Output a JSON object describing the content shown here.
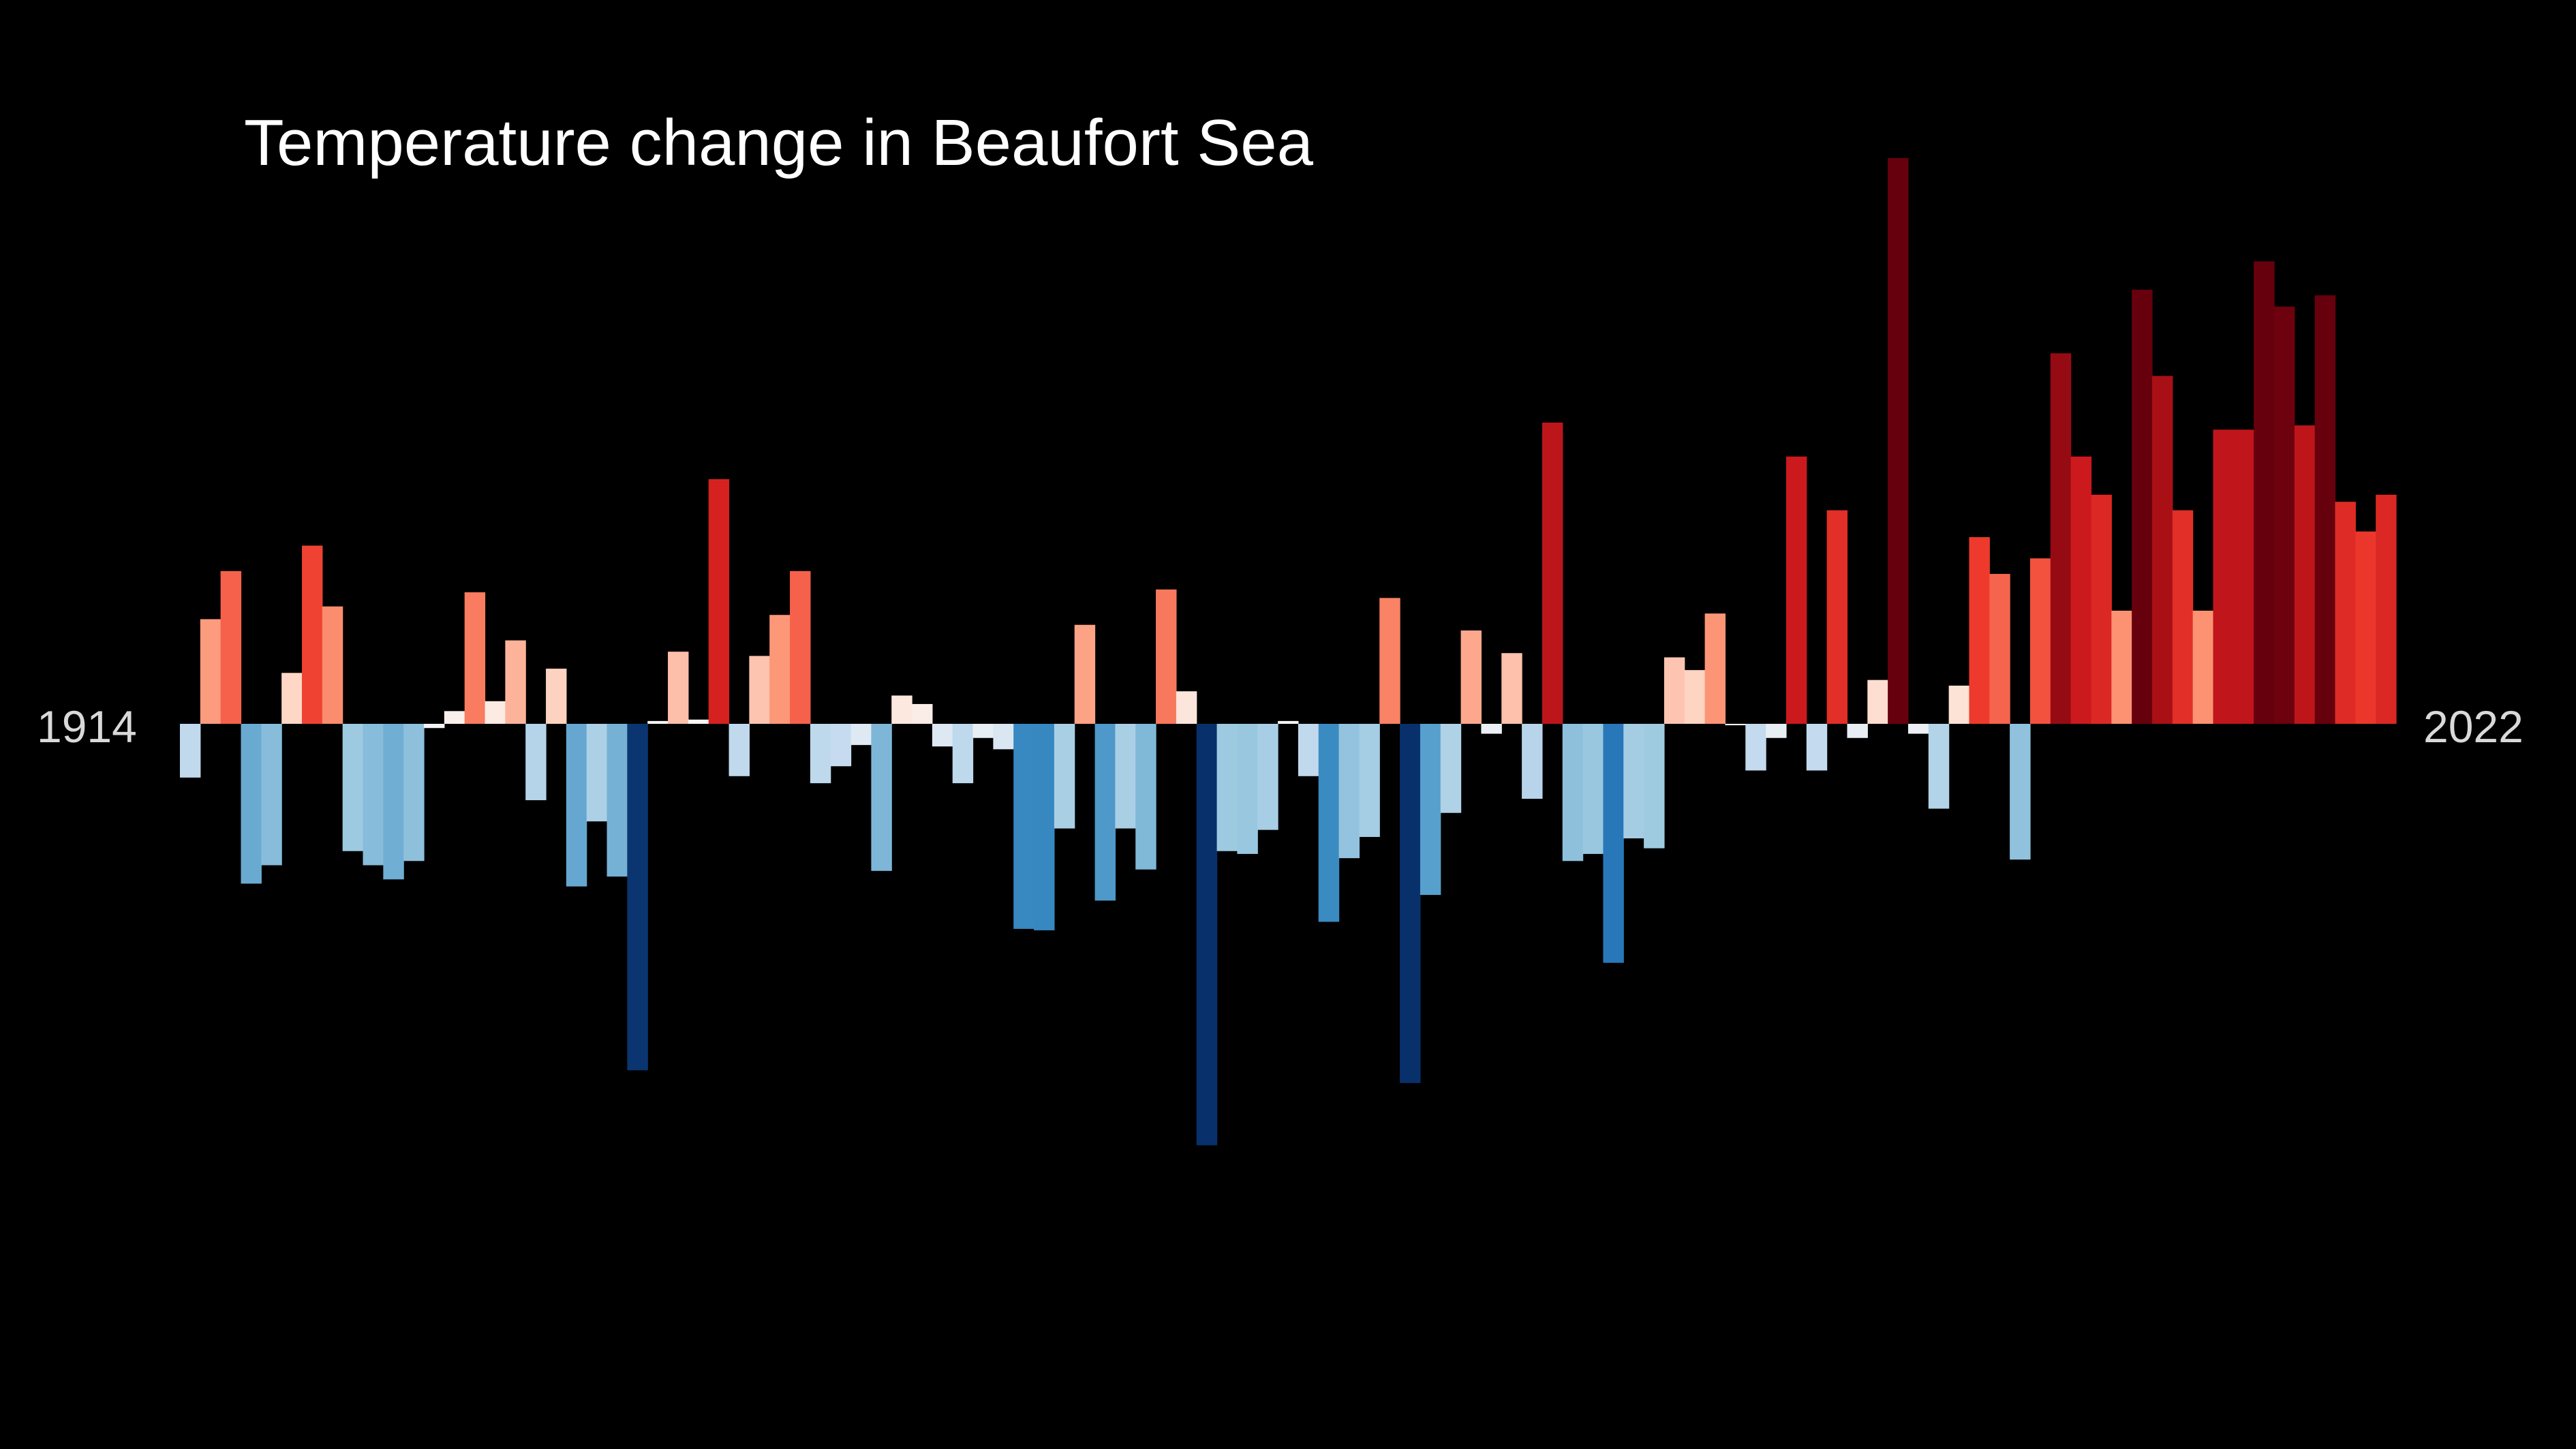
{
  "chart_data": {
    "type": "bar",
    "title": "Temperature change in Beaufort Sea",
    "start_label": "1914",
    "end_label": "2022",
    "xlabel": "",
    "ylabel": "",
    "ylim": [
      -3.0,
      4.0
    ],
    "grid": false,
    "legend": "none",
    "categories": [
      1914,
      1915,
      1916,
      1917,
      1918,
      1919,
      1920,
      1921,
      1922,
      1923,
      1924,
      1925,
      1926,
      1927,
      1928,
      1929,
      1930,
      1931,
      1932,
      1933,
      1934,
      1935,
      1936,
      1937,
      1938,
      1939,
      1940,
      1941,
      1942,
      1943,
      1944,
      1945,
      1946,
      1947,
      1948,
      1949,
      1950,
      1951,
      1952,
      1953,
      1954,
      1955,
      1956,
      1957,
      1958,
      1959,
      1960,
      1961,
      1962,
      1963,
      1964,
      1965,
      1966,
      1967,
      1968,
      1969,
      1970,
      1971,
      1972,
      1973,
      1974,
      1975,
      1976,
      1977,
      1978,
      1979,
      1980,
      1981,
      1982,
      1983,
      1984,
      1985,
      1986,
      1987,
      1988,
      1989,
      1990,
      1991,
      1992,
      1993,
      1994,
      1995,
      1996,
      1997,
      1998,
      1999,
      2000,
      2001,
      2002,
      2003,
      2004,
      2005,
      2006,
      2007,
      2008,
      2009,
      2010,
      2011,
      2012,
      2013,
      2014,
      2015,
      2016,
      2017,
      2018,
      2019,
      2020,
      2021,
      2022
    ],
    "values": [
      -0.38,
      0.74,
      1.08,
      -1.13,
      -1.0,
      0.36,
      1.26,
      0.83,
      -0.9,
      -1.0,
      -1.1,
      -0.97,
      -0.03,
      0.09,
      0.93,
      0.16,
      0.59,
      -0.54,
      0.39,
      -1.15,
      -0.69,
      -1.08,
      -2.45,
      0.02,
      0.51,
      0.03,
      1.73,
      -0.37,
      0.48,
      0.77,
      1.08,
      -0.42,
      -0.3,
      -0.15,
      -1.04,
      0.2,
      0.14,
      -0.16,
      -0.42,
      -0.1,
      -0.18,
      -1.45,
      -1.46,
      -0.74,
      0.7,
      -1.25,
      -0.74,
      -1.03,
      0.95,
      0.23,
      -2.98,
      -0.9,
      -0.92,
      -0.75,
      0.02,
      -0.37,
      -1.4,
      -0.95,
      -0.8,
      0.89,
      -2.54,
      -1.21,
      -0.63,
      0.66,
      -0.07,
      0.5,
      -0.53,
      2.13,
      -0.97,
      -0.92,
      -1.69,
      -0.81,
      -0.88,
      0.47,
      0.38,
      0.78,
      -0.01,
      -0.33,
      -0.1,
      1.89,
      -0.33,
      1.51,
      -0.1,
      0.31,
      4.0,
      -0.07,
      -0.6,
      0.27,
      1.32,
      1.06,
      -0.96,
      1.17,
      2.62,
      1.89,
      1.62,
      0.8,
      3.07,
      2.46,
      1.51,
      0.8,
      2.08,
      2.08,
      3.27,
      2.95,
      2.11,
      3.03,
      1.57,
      1.36,
      1.62
    ]
  }
}
